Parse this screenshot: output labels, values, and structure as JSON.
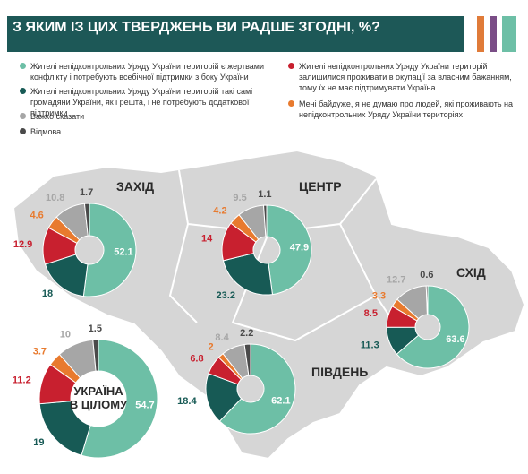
{
  "header": {
    "title": "З ЯКИМ ІЗ ЦИХ ТВЕРДЖЕНЬ ВИ РАДШЕ ЗГОДНІ, %?"
  },
  "legend": {
    "labels": [
      "Жителі непідконтрольних Уряду України територій є жертвами конфлікту і потребують всебічної підтримки з боку України",
      "Жителі непідконтрольних Уряду України територій такі самі громадяни України, як і решта, і не потребують додаткової підтримки",
      "Жителі непідконтрольних Уряду України територій залишилися проживати в окупації за власним бажанням, тому їх не має підтримувати Україна",
      "Мені байдуже, я не думаю про людей, які проживають на непідконтрольних Уряду України територіях",
      "Важко сказати",
      "Відмова"
    ],
    "colors": [
      "#6dbfa6",
      "#175a55",
      "#c8202f",
      "#e87a2e",
      "#a6a6a6",
      "#4a4a4a"
    ]
  },
  "chart_data": [
    {
      "type": "donut",
      "title": "ЗАХІД",
      "values": [
        52.1,
        18.0,
        12.9,
        4.6,
        10.8,
        1.7
      ]
    },
    {
      "type": "donut",
      "title": "ЦЕНТР",
      "values": [
        47.9,
        23.2,
        14.0,
        4.2,
        9.5,
        1.1
      ]
    },
    {
      "type": "donut",
      "title": "СХІД",
      "values": [
        63.6,
        11.3,
        8.5,
        3.3,
        12.7,
        0.6
      ]
    },
    {
      "type": "donut",
      "title": "ПІВДЕНЬ",
      "values": [
        62.1,
        18.4,
        6.8,
        2.0,
        8.4,
        2.2
      ]
    },
    {
      "type": "donut",
      "title": "УКРАЇНА В ЦІЛОМУ",
      "values": [
        54.7,
        19.0,
        11.2,
        3.7,
        10.0,
        1.5
      ]
    }
  ]
}
